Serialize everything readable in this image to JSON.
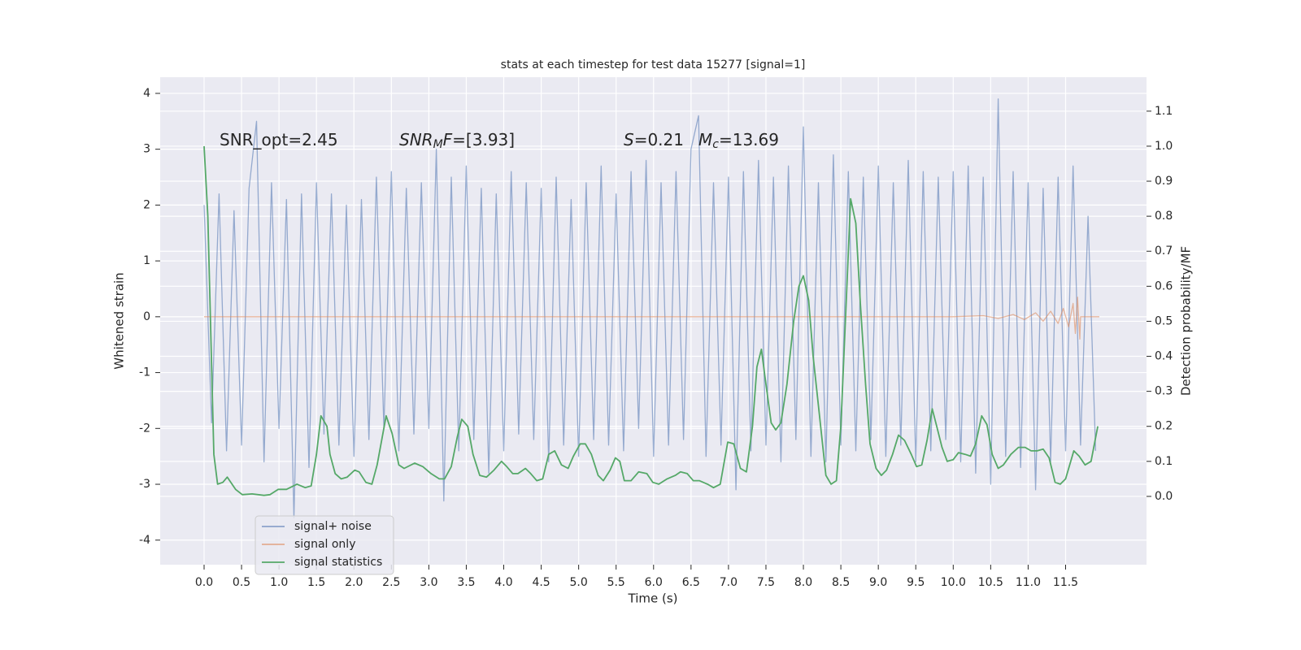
{
  "chart_data": {
    "type": "line",
    "title": "stats at each timestep for test data 15277 [signal=1]",
    "xlabel": "Time (s)",
    "ylabel": "Whitened strain",
    "y2label": "Detection probability/MF",
    "annotations": [
      [
        "SNR_opt=2.45"
      ],
      [
        "SNR",
        "M",
        "F",
        "=[3.93]"
      ],
      [
        "S",
        "=0.21"
      ],
      [
        "M",
        "c",
        "=13.69"
      ]
    ],
    "xlim": [
      -0.586,
      12.58
    ],
    "ylim": [
      -4.44,
      4.29
    ],
    "y2lim": [
      -0.195,
      1.197
    ],
    "xticks": [
      {
        "value": 0,
        "label": "0.0"
      },
      0.5,
      {
        "value": 1,
        "label": "1.0"
      },
      1.5,
      {
        "value": 2,
        "label": "2.0"
      },
      2.5,
      {
        "value": 3,
        "label": "3.0"
      },
      3.5,
      {
        "value": 4,
        "label": "4.0"
      },
      4.5,
      {
        "value": 5,
        "label": "5.0"
      },
      5.5,
      {
        "value": 6,
        "label": "6.0"
      },
      6.5,
      {
        "value": 7,
        "label": "7.0"
      },
      7.5,
      {
        "value": 8,
        "label": "8.0"
      },
      8.5,
      {
        "value": 9,
        "label": "9.0"
      },
      9.5,
      {
        "value": 10,
        "label": "10.0"
      },
      10.5,
      {
        "value": 11,
        "label": "11.0"
      },
      11.5
    ],
    "yticks": [
      -4,
      -3,
      -2,
      -1,
      0,
      1,
      2,
      3,
      4
    ],
    "y2ticks": [
      {
        "value": 0,
        "label": "0.0"
      },
      0.1,
      0.2,
      0.3,
      0.4,
      0.5,
      0.6,
      0.7,
      0.8,
      0.9,
      {
        "value": 1,
        "label": "1.0"
      },
      1.1
    ],
    "grid": true,
    "legend": "lower left",
    "background": "#eaeaf2",
    "series": [
      {
        "name": "signal+ noise",
        "color": "#4c72b0",
        "axis": "y",
        "x": [
          0.0,
          0.1,
          0.2,
          0.3,
          0.4,
          0.5,
          0.6,
          0.7,
          0.8,
          0.9,
          1.0,
          1.1,
          1.2,
          1.3,
          1.4,
          1.5,
          1.6,
          1.7,
          1.8,
          1.9,
          2.0,
          2.1,
          2.2,
          2.3,
          2.4,
          2.5,
          2.6,
          2.7,
          2.8,
          2.9,
          3.0,
          3.1,
          3.2,
          3.3,
          3.4,
          3.5,
          3.6,
          3.7,
          3.8,
          3.9,
          4.0,
          4.1,
          4.2,
          4.3,
          4.4,
          4.5,
          4.6,
          4.7,
          4.8,
          4.9,
          5.0,
          5.1,
          5.2,
          5.3,
          5.4,
          5.5,
          5.6,
          5.7,
          5.8,
          5.9,
          6.0,
          6.1,
          6.2,
          6.3,
          6.4,
          6.5,
          6.6,
          6.7,
          6.8,
          6.9,
          7.0,
          7.1,
          7.2,
          7.3,
          7.4,
          7.5,
          7.6,
          7.7,
          7.8,
          7.9,
          8.0,
          8.1,
          8.2,
          8.3,
          8.4,
          8.5,
          8.6,
          8.7,
          8.8,
          8.9,
          9.0,
          9.1,
          9.2,
          9.3,
          9.4,
          9.5,
          9.6,
          9.7,
          9.8,
          9.9,
          10.0,
          10.1,
          10.2,
          10.3,
          10.4,
          10.5,
          10.6,
          10.7,
          10.8,
          10.9,
          11.0,
          11.1,
          11.2,
          11.3,
          11.4,
          11.5,
          11.6,
          11.7,
          11.8,
          11.9
        ],
        "values": [
          2.0,
          -1.9,
          2.2,
          -2.4,
          1.9,
          -2.3,
          2.3,
          3.5,
          -2.6,
          2.4,
          -2.0,
          2.1,
          -3.6,
          2.2,
          -2.7,
          2.4,
          -2.1,
          2.2,
          -2.3,
          2.0,
          -2.5,
          2.1,
          -2.2,
          2.5,
          -2.0,
          2.6,
          -2.4,
          2.3,
          -2.1,
          2.4,
          -2.0,
          3.0,
          -3.3,
          2.5,
          -2.4,
          2.7,
          -2.2,
          2.3,
          -2.8,
          2.2,
          -2.4,
          2.6,
          -2.1,
          2.4,
          -2.2,
          2.3,
          -2.6,
          2.5,
          -2.3,
          2.1,
          -2.5,
          2.4,
          -2.2,
          2.7,
          -2.3,
          2.2,
          -2.4,
          2.6,
          -2.0,
          2.8,
          -2.5,
          2.4,
          -2.3,
          2.6,
          -2.2,
          3.0,
          3.6,
          -2.5,
          2.4,
          -2.3,
          2.5,
          -3.1,
          2.6,
          -2.4,
          2.8,
          -2.3,
          2.5,
          -2.6,
          2.7,
          -2.2,
          3.4,
          -2.5,
          2.4,
          -2.6,
          2.9,
          -2.3,
          2.6,
          -2.4,
          2.5,
          -2.2,
          2.7,
          -2.5,
          2.4,
          -2.3,
          2.8,
          -2.6,
          2.6,
          -2.4,
          2.5,
          -2.2,
          2.6,
          -2.6,
          2.7,
          -2.8,
          2.5,
          -3.0,
          3.9,
          -2.5,
          2.6,
          -2.7,
          2.4,
          -3.1,
          2.3,
          -2.6,
          2.5,
          -2.4,
          2.7,
          -2.3,
          1.8,
          -2.4
        ]
      },
      {
        "name": "signal only",
        "color": "#dd8452",
        "axis": "y",
        "x": [
          0,
          10,
          10.4,
          10.6,
          10.8,
          10.95,
          11.1,
          11.2,
          11.3,
          11.4,
          11.47,
          11.54,
          11.6,
          11.63,
          11.66,
          11.69,
          11.7,
          11.95
        ],
        "values": [
          0,
          0,
          0.02,
          -0.03,
          0.04,
          -0.05,
          0.07,
          -0.08,
          0.1,
          -0.12,
          0.15,
          -0.18,
          0.24,
          -0.3,
          0.35,
          -0.4,
          0,
          0
        ]
      },
      {
        "name": "signal statistics",
        "color": "#55a868",
        "axis": "y2",
        "x": [
          0,
          0.05,
          0.13,
          0.18,
          0.25,
          0.31,
          0.42,
          0.51,
          0.64,
          0.8,
          0.88,
          0.99,
          1.1,
          1.24,
          1.35,
          1.43,
          1.5,
          1.56,
          1.64,
          1.68,
          1.75,
          1.83,
          1.91,
          2.01,
          2.07,
          2.16,
          2.24,
          2.31,
          2.43,
          2.51,
          2.6,
          2.67,
          2.81,
          2.92,
          3.03,
          3.14,
          3.21,
          3.3,
          3.38,
          3.44,
          3.52,
          3.59,
          3.68,
          3.77,
          3.87,
          3.97,
          4.04,
          4.12,
          4.19,
          4.29,
          4.36,
          4.44,
          4.52,
          4.6,
          4.68,
          4.77,
          4.86,
          4.93,
          5.02,
          5.09,
          5.17,
          5.26,
          5.33,
          5.42,
          5.49,
          5.55,
          5.61,
          5.7,
          5.8,
          5.91,
          5.99,
          6.07,
          6.18,
          6.29,
          6.36,
          6.45,
          6.53,
          6.61,
          6.72,
          6.8,
          6.89,
          6.99,
          7.07,
          7.16,
          7.24,
          7.32,
          7.38,
          7.44,
          7.5,
          7.57,
          7.63,
          7.7,
          7.78,
          7.87,
          7.94,
          8.0,
          8.07,
          8.13,
          8.21,
          8.3,
          8.37,
          8.44,
          8.5,
          8.57,
          8.63,
          8.7,
          8.76,
          8.83,
          8.89,
          8.97,
          9.04,
          9.11,
          9.19,
          9.27,
          9.35,
          9.44,
          9.51,
          9.58,
          9.65,
          9.72,
          9.78,
          9.85,
          9.92,
          10.0,
          10.07,
          10.16,
          10.23,
          10.3,
          10.38,
          10.45,
          10.52,
          10.6,
          10.67,
          10.77,
          10.87,
          10.96,
          11.04,
          11.12,
          11.2,
          11.28,
          11.36,
          11.43,
          11.5,
          11.61,
          11.68,
          11.76,
          11.84,
          11.93
        ],
        "values": [
          1.0,
          0.8,
          0.12,
          0.035,
          0.04,
          0.055,
          0.02,
          0.005,
          0.007,
          0.003,
          0.005,
          0.02,
          0.02,
          0.035,
          0.025,
          0.03,
          0.12,
          0.23,
          0.2,
          0.12,
          0.065,
          0.05,
          0.055,
          0.075,
          0.07,
          0.04,
          0.035,
          0.09,
          0.23,
          0.18,
          0.09,
          0.08,
          0.095,
          0.085,
          0.065,
          0.05,
          0.05,
          0.085,
          0.17,
          0.22,
          0.2,
          0.12,
          0.06,
          0.055,
          0.075,
          0.1,
          0.085,
          0.065,
          0.065,
          0.08,
          0.065,
          0.045,
          0.05,
          0.12,
          0.13,
          0.09,
          0.08,
          0.115,
          0.15,
          0.15,
          0.12,
          0.06,
          0.045,
          0.075,
          0.11,
          0.1,
          0.045,
          0.045,
          0.07,
          0.065,
          0.04,
          0.035,
          0.05,
          0.06,
          0.07,
          0.065,
          0.045,
          0.045,
          0.035,
          0.025,
          0.035,
          0.155,
          0.15,
          0.08,
          0.07,
          0.2,
          0.37,
          0.42,
          0.32,
          0.21,
          0.19,
          0.21,
          0.32,
          0.5,
          0.6,
          0.63,
          0.56,
          0.4,
          0.24,
          0.06,
          0.035,
          0.045,
          0.2,
          0.55,
          0.85,
          0.78,
          0.55,
          0.32,
          0.15,
          0.08,
          0.06,
          0.075,
          0.12,
          0.175,
          0.16,
          0.12,
          0.085,
          0.09,
          0.16,
          0.25,
          0.2,
          0.14,
          0.1,
          0.105,
          0.125,
          0.12,
          0.115,
          0.15,
          0.23,
          0.205,
          0.12,
          0.08,
          0.09,
          0.12,
          0.14,
          0.14,
          0.13,
          0.13,
          0.135,
          0.11,
          0.04,
          0.035,
          0.05,
          0.13,
          0.115,
          0.09,
          0.1,
          0.2
        ]
      }
    ]
  }
}
